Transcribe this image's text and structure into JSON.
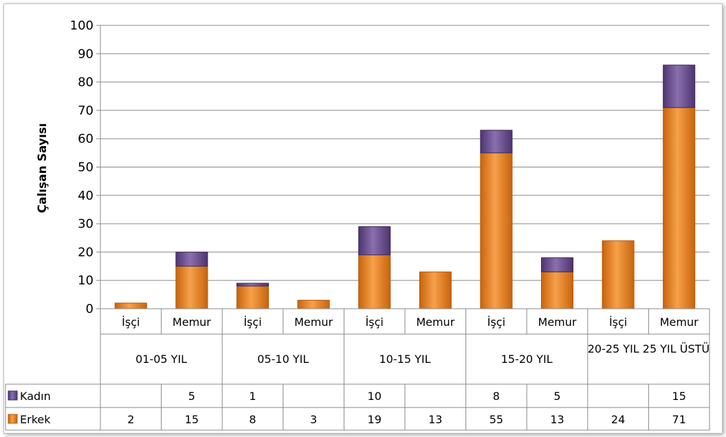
{
  "chart_data": {
    "type": "bar",
    "stacked": true,
    "title": "",
    "ylabel": "Çalışan Sayısı",
    "ylim": [
      0,
      100
    ],
    "yticks": [
      0,
      10,
      20,
      30,
      40,
      50,
      60,
      70,
      80,
      90,
      100
    ],
    "groups": [
      "01-05 YIL",
      "05-10 YIL",
      "10-15 YIL",
      "15-20 YIL",
      "20-25 YIL",
      "25 YIL ÜSTÜ"
    ],
    "group_header_label": "20-25 YIL 25 YIL ÜSTÜ",
    "categories": [
      "İşçi",
      "Memur",
      "İşçi",
      "Memur",
      "İşçi",
      "Memur",
      "İşçi",
      "Memur",
      "İşçi",
      "Memur"
    ],
    "series": [
      {
        "name": "Erkek",
        "color": "#f0891e",
        "values": [
          2,
          15,
          8,
          3,
          19,
          13,
          55,
          13,
          24,
          71
        ]
      },
      {
        "name": "Kadın",
        "color": "#6b4f8c",
        "values": [
          null,
          5,
          1,
          null,
          10,
          null,
          8,
          5,
          null,
          15
        ]
      }
    ],
    "grid": true,
    "legend": "data-table"
  }
}
